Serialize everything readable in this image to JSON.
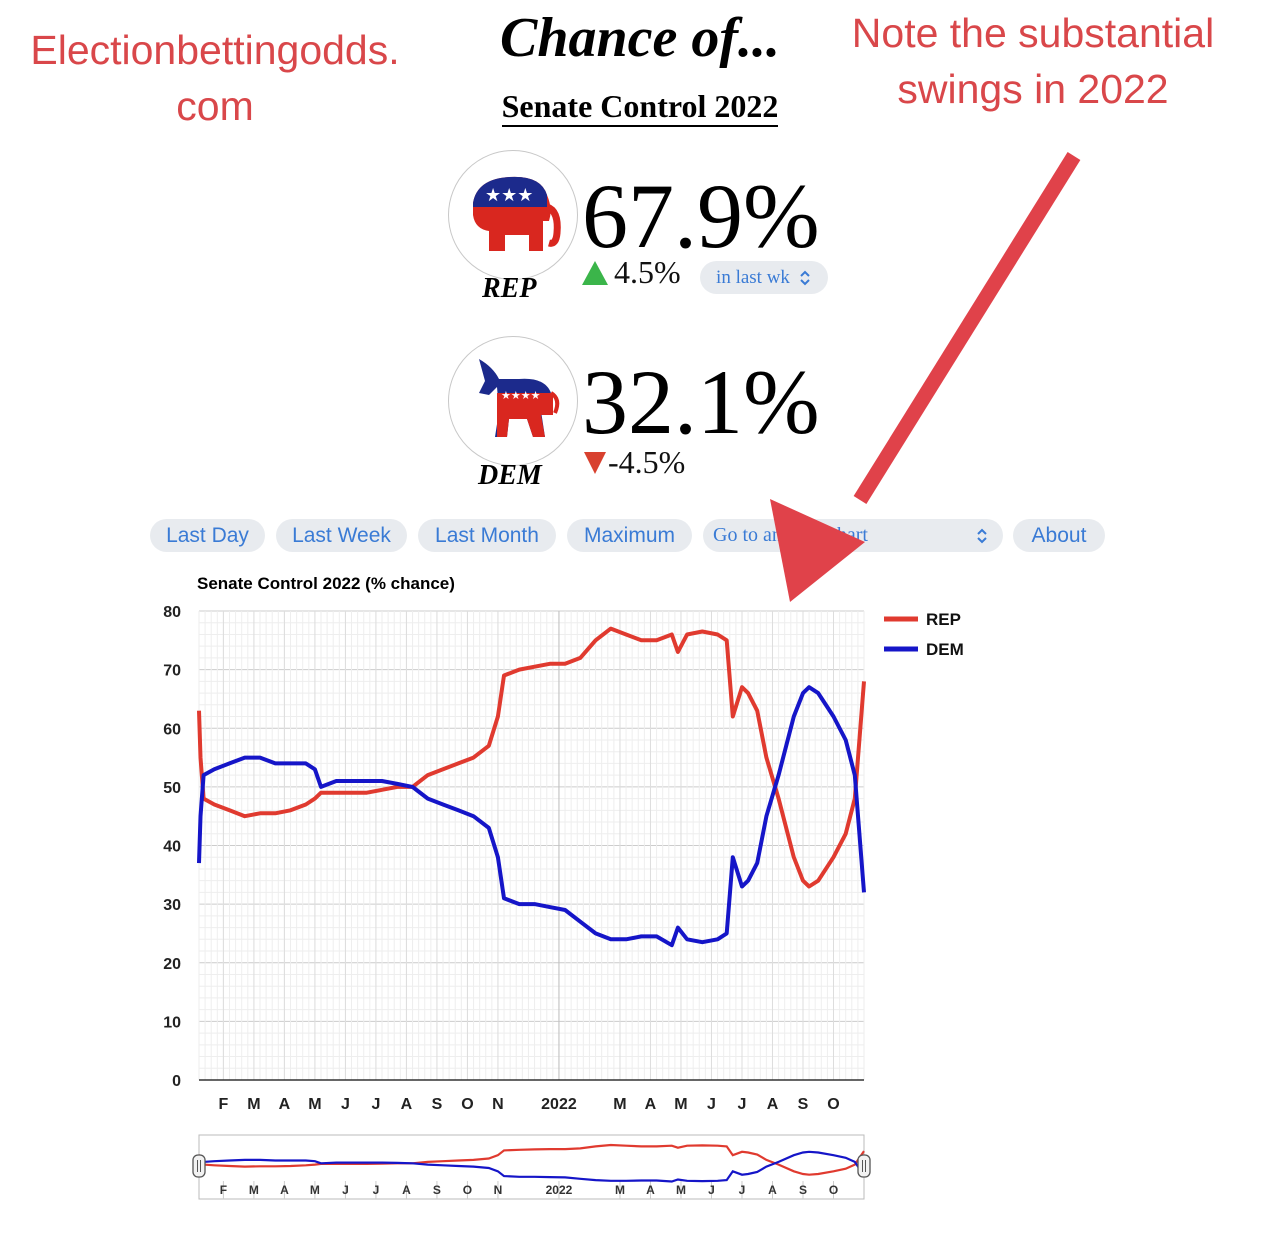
{
  "annotations": {
    "left_line1": "Electionbettingodds.",
    "left_line2": "com",
    "right_line1": "Note the substantial",
    "right_line2": "swings in 2022"
  },
  "header": {
    "title": "Chance of...",
    "subtitle": "Senate Control 2022"
  },
  "rep": {
    "label": "REP",
    "pct": "67.9%",
    "change": "4.5%",
    "period": "in last wk",
    "color": "#e03a2f"
  },
  "dem": {
    "label": "DEM",
    "pct": "32.1%",
    "change": "-4.5%",
    "color": "#1515c8"
  },
  "controls": {
    "last_day": "Last Day",
    "last_week": "Last Week",
    "last_month": "Last Month",
    "maximum": "Maximum",
    "goto": "Go to another chart",
    "about": "About"
  },
  "chart_data": {
    "type": "line",
    "title": "Senate Control 2022 (% chance)",
    "ylim": [
      0,
      80
    ],
    "yticks": [
      0,
      10,
      20,
      30,
      40,
      50,
      60,
      70,
      80
    ],
    "xlim": [
      0,
      21.8
    ],
    "xtick_labels": [
      {
        "t": 0.8,
        "label": "F"
      },
      {
        "t": 1.8,
        "label": "M"
      },
      {
        "t": 2.8,
        "label": "A"
      },
      {
        "t": 3.8,
        "label": "M"
      },
      {
        "t": 4.8,
        "label": "J"
      },
      {
        "t": 5.8,
        "label": "J"
      },
      {
        "t": 6.8,
        "label": "A"
      },
      {
        "t": 7.8,
        "label": "S"
      },
      {
        "t": 8.8,
        "label": "O"
      },
      {
        "t": 9.8,
        "label": "N"
      },
      {
        "t": 11.8,
        "label": "2022"
      },
      {
        "t": 13.8,
        "label": "M"
      },
      {
        "t": 14.8,
        "label": "A"
      },
      {
        "t": 15.8,
        "label": "M"
      },
      {
        "t": 16.8,
        "label": "J"
      },
      {
        "t": 17.8,
        "label": "J"
      },
      {
        "t": 18.8,
        "label": "A"
      },
      {
        "t": 19.8,
        "label": "S"
      },
      {
        "t": 20.8,
        "label": "O"
      }
    ],
    "legend_position": "right",
    "grid": true,
    "series": [
      {
        "name": "REP",
        "color": "#e03a2f",
        "points": [
          [
            0,
            63
          ],
          [
            0.05,
            55
          ],
          [
            0.15,
            48
          ],
          [
            0.5,
            47
          ],
          [
            1,
            46
          ],
          [
            1.5,
            45
          ],
          [
            2,
            45.5
          ],
          [
            2.5,
            45.5
          ],
          [
            3,
            46
          ],
          [
            3.5,
            47
          ],
          [
            3.8,
            48
          ],
          [
            4,
            49
          ],
          [
            4.5,
            49
          ],
          [
            5,
            49
          ],
          [
            5.5,
            49
          ],
          [
            6,
            49.5
          ],
          [
            6.5,
            50
          ],
          [
            7,
            50
          ],
          [
            7.5,
            52
          ],
          [
            8,
            53
          ],
          [
            8.5,
            54
          ],
          [
            9,
            55
          ],
          [
            9.5,
            57
          ],
          [
            9.8,
            62
          ],
          [
            10,
            69
          ],
          [
            10.5,
            70
          ],
          [
            11,
            70.5
          ],
          [
            11.5,
            71
          ],
          [
            12,
            71
          ],
          [
            12.5,
            72
          ],
          [
            13,
            75
          ],
          [
            13.5,
            77
          ],
          [
            14,
            76
          ],
          [
            14.5,
            75
          ],
          [
            15,
            75
          ],
          [
            15.5,
            76
          ],
          [
            15.7,
            73
          ],
          [
            16,
            76
          ],
          [
            16.5,
            76.5
          ],
          [
            17,
            76
          ],
          [
            17.3,
            75
          ],
          [
            17.5,
            62
          ],
          [
            17.8,
            67
          ],
          [
            18,
            66
          ],
          [
            18.3,
            63
          ],
          [
            18.6,
            55
          ],
          [
            19,
            48
          ],
          [
            19.5,
            38
          ],
          [
            19.8,
            34
          ],
          [
            20,
            33
          ],
          [
            20.3,
            34
          ],
          [
            20.8,
            38
          ],
          [
            21.2,
            42
          ],
          [
            21.5,
            48
          ],
          [
            21.8,
            68
          ]
        ]
      },
      {
        "name": "DEM",
        "color": "#1515c8",
        "points": [
          [
            0,
            37
          ],
          [
            0.05,
            45
          ],
          [
            0.15,
            52
          ],
          [
            0.5,
            53
          ],
          [
            1,
            54
          ],
          [
            1.5,
            55
          ],
          [
            2,
            55
          ],
          [
            2.5,
            54
          ],
          [
            3,
            54
          ],
          [
            3.5,
            54
          ],
          [
            3.8,
            53
          ],
          [
            4,
            50
          ],
          [
            4.5,
            51
          ],
          [
            5,
            51
          ],
          [
            5.5,
            51
          ],
          [
            6,
            51
          ],
          [
            6.5,
            50.5
          ],
          [
            7,
            50
          ],
          [
            7.5,
            48
          ],
          [
            8,
            47
          ],
          [
            8.5,
            46
          ],
          [
            9,
            45
          ],
          [
            9.5,
            43
          ],
          [
            9.8,
            38
          ],
          [
            10,
            31
          ],
          [
            10.5,
            30
          ],
          [
            11,
            30
          ],
          [
            11.5,
            29.5
          ],
          [
            12,
            29
          ],
          [
            12.5,
            27
          ],
          [
            13,
            25
          ],
          [
            13.5,
            24
          ],
          [
            14,
            24
          ],
          [
            14.5,
            24.5
          ],
          [
            15,
            24.5
          ],
          [
            15.5,
            23
          ],
          [
            15.7,
            26
          ],
          [
            16,
            24
          ],
          [
            16.5,
            23.5
          ],
          [
            17,
            24
          ],
          [
            17.3,
            25
          ],
          [
            17.5,
            38
          ],
          [
            17.8,
            33
          ],
          [
            18,
            34
          ],
          [
            18.3,
            37
          ],
          [
            18.6,
            45
          ],
          [
            19,
            52
          ],
          [
            19.5,
            62
          ],
          [
            19.8,
            66
          ],
          [
            20,
            67
          ],
          [
            20.3,
            66
          ],
          [
            20.8,
            62
          ],
          [
            21.2,
            58
          ],
          [
            21.5,
            52
          ],
          [
            21.8,
            32
          ]
        ]
      }
    ]
  }
}
